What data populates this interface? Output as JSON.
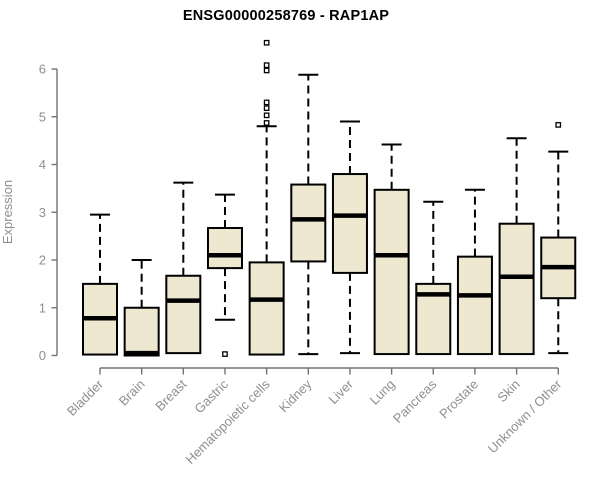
{
  "chart_data": {
    "type": "boxplot",
    "title": "ENSG00000258769 - RAP1AP",
    "ylabel": "Expression",
    "xlabel": "",
    "ylim": [
      0,
      6
    ],
    "yticks": [
      0,
      1,
      2,
      3,
      4,
      5,
      6
    ],
    "grid": false,
    "legend": "none",
    "colors": {
      "box_fill": "#EDE8CF",
      "box_stroke": "#000000",
      "median": "#000000",
      "whisker": "#000000",
      "axis": "#737373",
      "tick_label": "#8f8f8f",
      "title": "#000000",
      "background": "#ffffff"
    },
    "categories": [
      "Bladder",
      "Brain",
      "Breast",
      "Gastric",
      "Hematopoietic cells",
      "Kidney",
      "Liver",
      "Lung",
      "Pancreas",
      "Prostate",
      "Skin",
      "Unknown / Other"
    ],
    "series": [
      {
        "category": "Bladder",
        "whisker_low": 0.02,
        "q1": 0.02,
        "median": 0.78,
        "q3": 1.5,
        "whisker_high": 2.95,
        "outliers": []
      },
      {
        "category": "Brain",
        "whisker_low": 0.0,
        "q1": 0.0,
        "median": 0.05,
        "q3": 1.0,
        "whisker_high": 2.0,
        "outliers": []
      },
      {
        "category": "Breast",
        "whisker_low": 0.05,
        "q1": 0.05,
        "median": 1.15,
        "q3": 1.67,
        "whisker_high": 3.62,
        "outliers": []
      },
      {
        "category": "Gastric",
        "whisker_low": 0.75,
        "q1": 1.83,
        "median": 2.1,
        "q3": 2.67,
        "whisker_high": 3.37,
        "outliers": [
          0.03
        ]
      },
      {
        "category": "Hematopoietic cells",
        "whisker_low": 0.02,
        "q1": 0.02,
        "median": 1.17,
        "q3": 1.95,
        "whisker_high": 4.8,
        "outliers": [
          4.87,
          5.03,
          5.18,
          5.3,
          5.97,
          6.08,
          6.55
        ]
      },
      {
        "category": "Kidney",
        "whisker_low": 0.03,
        "q1": 1.97,
        "median": 2.85,
        "q3": 3.58,
        "whisker_high": 5.88,
        "outliers": []
      },
      {
        "category": "Liver",
        "whisker_low": 0.05,
        "q1": 1.73,
        "median": 2.93,
        "q3": 3.8,
        "whisker_high": 4.9,
        "outliers": []
      },
      {
        "category": "Lung",
        "whisker_low": 0.03,
        "q1": 0.03,
        "median": 2.1,
        "q3": 3.47,
        "whisker_high": 4.42,
        "outliers": []
      },
      {
        "category": "Pancreas",
        "whisker_low": 0.03,
        "q1": 0.03,
        "median": 1.28,
        "q3": 1.5,
        "whisker_high": 3.22,
        "outliers": []
      },
      {
        "category": "Prostate",
        "whisker_low": 0.03,
        "q1": 0.03,
        "median": 1.26,
        "q3": 2.07,
        "whisker_high": 3.47,
        "outliers": []
      },
      {
        "category": "Skin",
        "whisker_low": 0.03,
        "q1": 0.03,
        "median": 1.65,
        "q3": 2.76,
        "whisker_high": 4.55,
        "outliers": []
      },
      {
        "category": "Unknown / Other",
        "whisker_low": 0.05,
        "q1": 1.2,
        "median": 1.85,
        "q3": 2.47,
        "whisker_high": 4.27,
        "outliers": [
          4.83
        ]
      }
    ]
  }
}
